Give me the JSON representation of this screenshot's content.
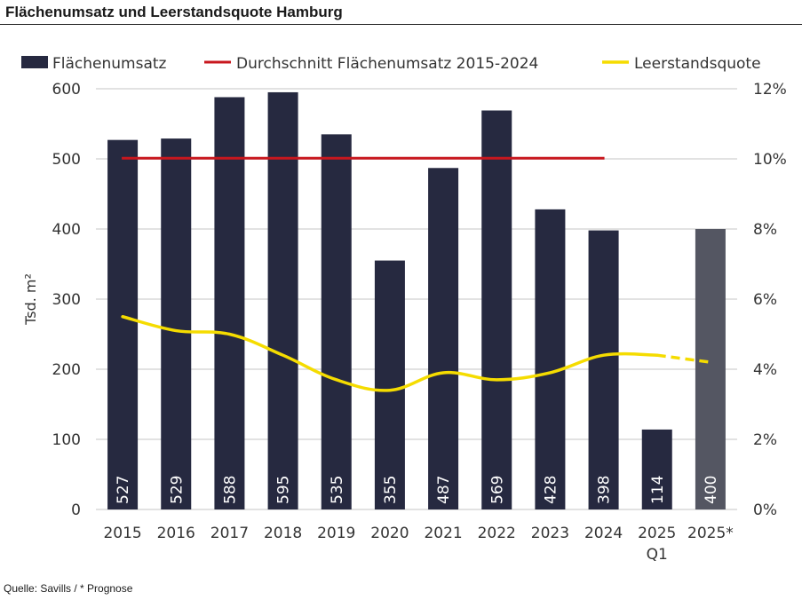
{
  "title": "Flächenumsatz und Leerstandsquote Hamburg",
  "footer": "Quelle: Savills / * Prognose",
  "colors": {
    "bar": "#262940",
    "bar_forecast": "#545662",
    "average": "#c8171e",
    "vacancy": "#f5dc00",
    "grid": "#d9d9d9"
  },
  "chart_data": {
    "type": "bar",
    "categories": [
      "2015",
      "2016",
      "2017",
      "2018",
      "2019",
      "2020",
      "2021",
      "2022",
      "2023",
      "2024",
      "2025",
      "2025*"
    ],
    "category_sublabels": [
      "",
      "",
      "",
      "",
      "",
      "",
      "",
      "",
      "",
      "",
      "Q1",
      ""
    ],
    "series": [
      {
        "name": "Flächenumsatz",
        "type": "bar",
        "axis": "left",
        "values": [
          527,
          529,
          588,
          595,
          535,
          355,
          487,
          569,
          428,
          398,
          114,
          400
        ],
        "forecast_index": 11,
        "data_labels": [
          "527",
          "529",
          "588",
          "595",
          "535",
          "355",
          "487",
          "569",
          "428",
          "398",
          "114",
          "400"
        ]
      },
      {
        "name": "Durchschnitt Flächenumsatz 2015-2024",
        "type": "line",
        "axis": "left",
        "values": [
          501,
          501,
          501,
          501,
          501,
          501,
          501,
          501,
          501,
          501,
          null,
          null
        ]
      },
      {
        "name": "Leerstandsquote",
        "type": "line",
        "axis": "right",
        "values": [
          5.5,
          5.1,
          5.0,
          4.4,
          3.7,
          3.4,
          3.9,
          3.7,
          3.9,
          4.4,
          4.4,
          4.2
        ],
        "dashed_from_index": 10
      }
    ],
    "ylabel": "Tsd. m²",
    "ylim": [
      0,
      600
    ],
    "yticks": [
      "0",
      "100",
      "200",
      "300",
      "400",
      "500",
      "600"
    ],
    "y2lim": [
      0,
      12
    ],
    "y2ticks": [
      "0%",
      "2%",
      "4%",
      "6%",
      "8%",
      "10%",
      "12%"
    ],
    "grid": true,
    "legend": "top"
  }
}
